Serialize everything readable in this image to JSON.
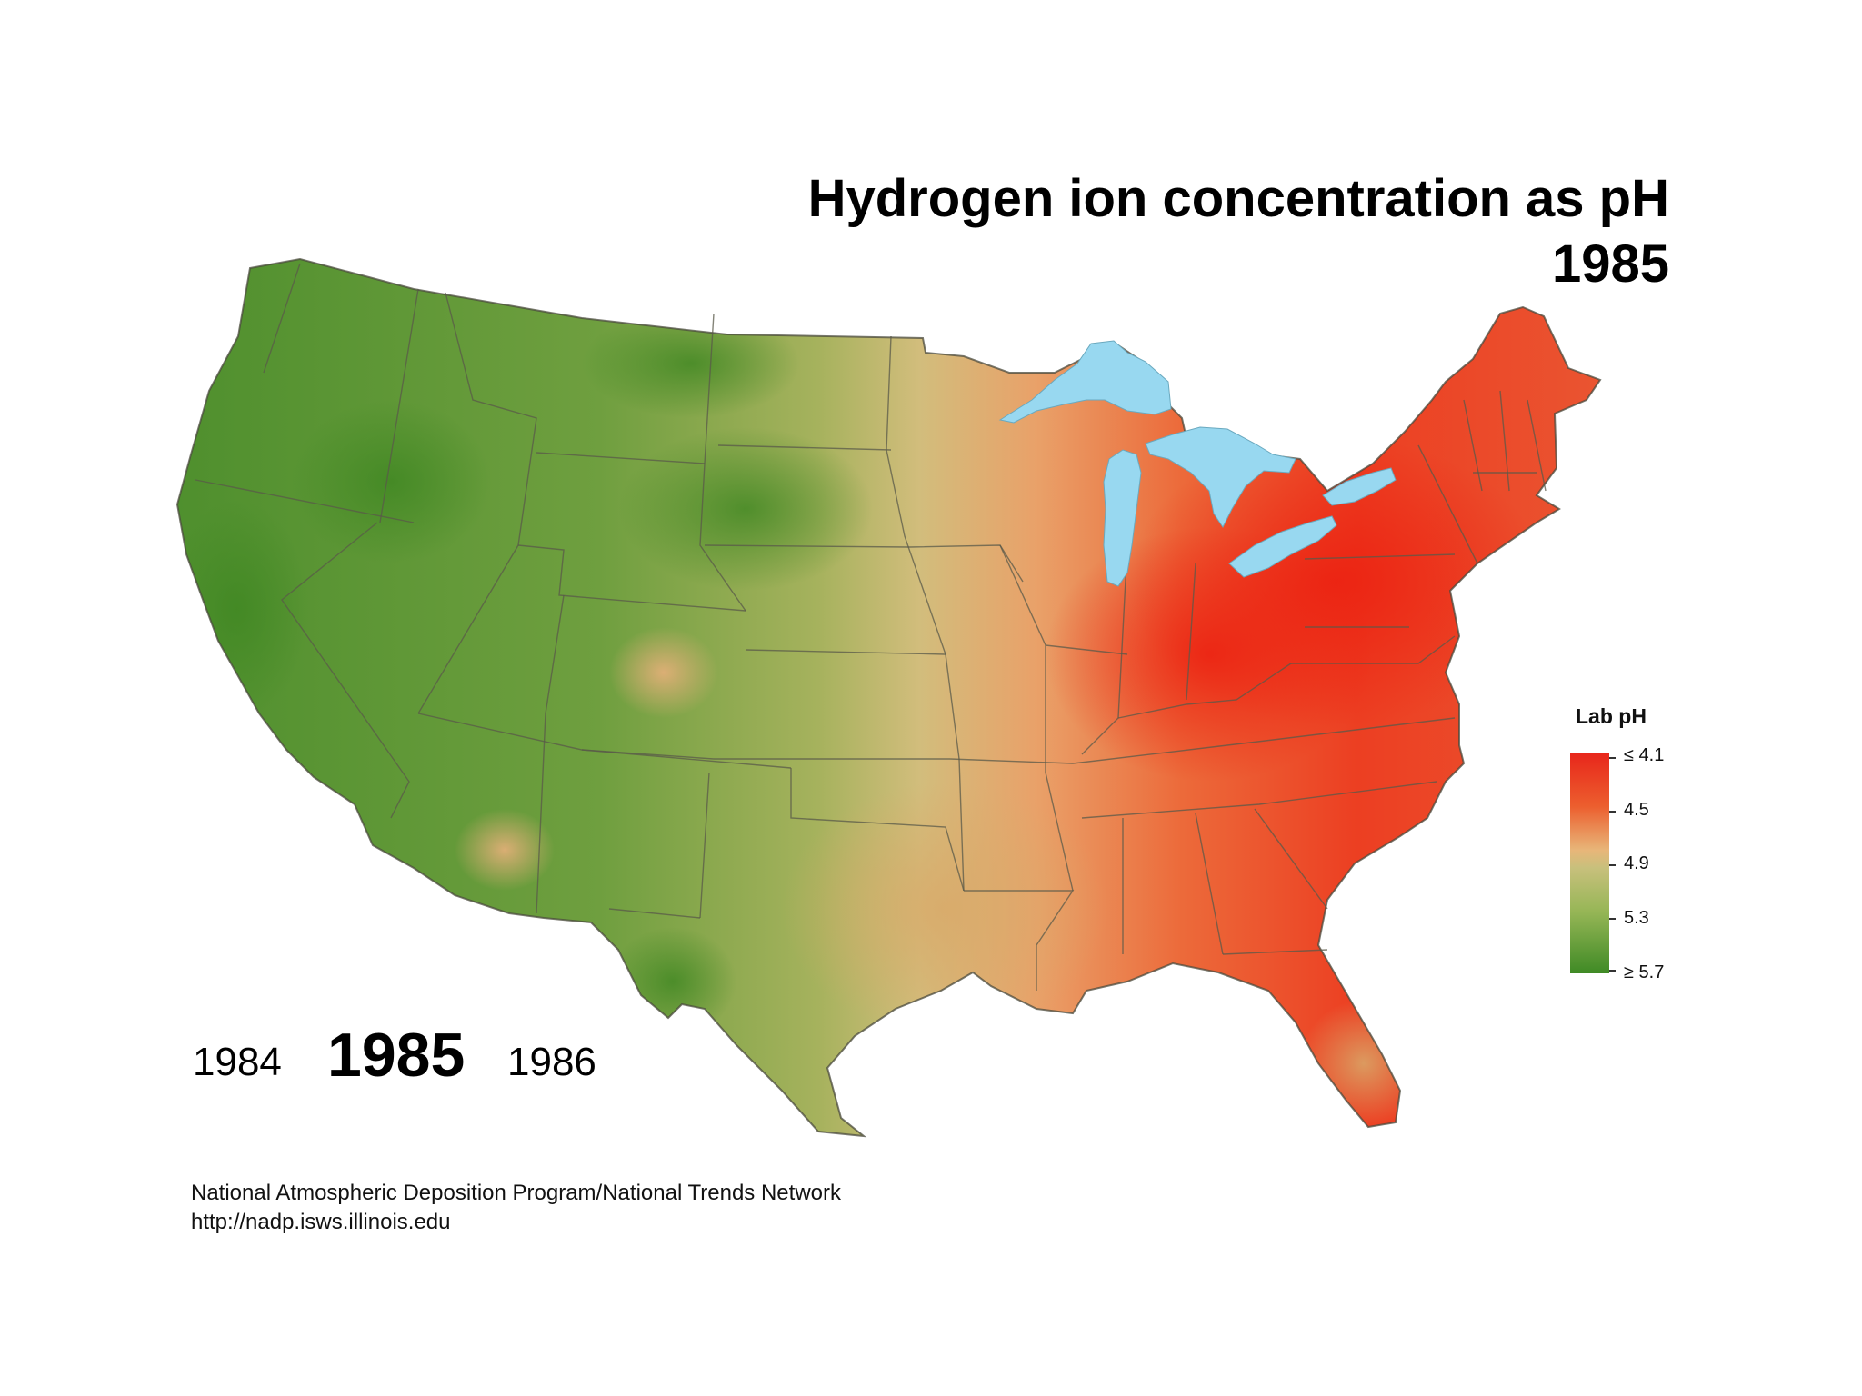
{
  "title": {
    "line1": "Hydrogen ion concentration as pH",
    "line2": "1985"
  },
  "years": {
    "previous": "1984",
    "current": "1985",
    "next": "1986"
  },
  "legend": {
    "title": "Lab pH",
    "labels": [
      "≤ 4.1",
      "4.5",
      "4.9",
      "5.3",
      "≥ 5.7"
    ],
    "colors": {
      "low_ph": "#e8271b",
      "mid_low": "#ec5e2e",
      "mid": "#e8b679",
      "mid_high": "#c8c07c",
      "high": "#96b656",
      "highest_ph": "#3f8a25"
    }
  },
  "map_colors": {
    "great_lakes": "#98d8f0",
    "state_borders": "#5a5a4a"
  },
  "credit": {
    "line1": "National Atmospheric Deposition Program/National Trends Network",
    "line2": "http://nadp.isws.illinois.edu"
  }
}
